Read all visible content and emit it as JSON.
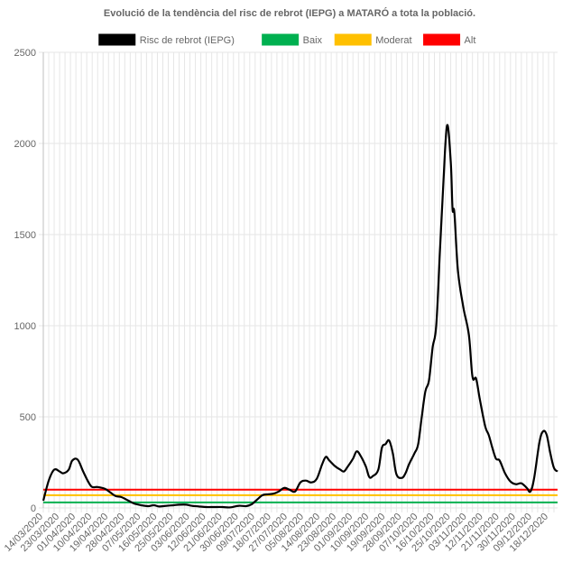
{
  "chart_data": {
    "type": "line",
    "title": "Evolució de la tendència del risc de rebrot (IEPG) a MATARÓ a tota la població.",
    "xlabel": "",
    "ylabel": "",
    "ylim": [
      0,
      2500
    ],
    "yticks": [
      0,
      500,
      1000,
      1500,
      2000,
      2500
    ],
    "grid": true,
    "legend_position": "top",
    "x_tick_labels": [
      "14/03/2020",
      "23/03/2020",
      "01/04/2020",
      "10/04/2020",
      "19/04/2020",
      "28/04/2020",
      "07/05/2020",
      "16/05/2020",
      "25/05/2020",
      "03/06/2020",
      "12/06/2020",
      "21/06/2020",
      "30/06/2020",
      "09/07/2020",
      "18/07/2020",
      "27/07/2020",
      "05/08/2020",
      "14/08/2020",
      "23/08/2020",
      "01/09/2020",
      "10/09/2020",
      "19/09/2020",
      "28/09/2020",
      "07/10/2020",
      "16/10/2020",
      "25/10/2020",
      "03/11/2020",
      "12/11/2020",
      "21/11/2020",
      "30/11/2020",
      "09/12/2020",
      "18/12/2020"
    ],
    "x_range": [
      "14/03/2020",
      "23/12/2020"
    ],
    "series": [
      {
        "name": "Risc de rebrot (IEPG)",
        "color": "#000000",
        "points": [
          [
            "14/03/2020",
            40
          ],
          [
            "17/03/2020",
            150
          ],
          [
            "20/03/2020",
            210
          ],
          [
            "23/03/2020",
            200
          ],
          [
            "25/03/2020",
            190
          ],
          [
            "28/03/2020",
            210
          ],
          [
            "30/03/2020",
            260
          ],
          [
            "02/04/2020",
            265
          ],
          [
            "05/04/2020",
            200
          ],
          [
            "08/04/2020",
            140
          ],
          [
            "10/04/2020",
            115
          ],
          [
            "13/04/2020",
            115
          ],
          [
            "17/04/2020",
            105
          ],
          [
            "20/04/2020",
            85
          ],
          [
            "23/04/2020",
            65
          ],
          [
            "26/04/2020",
            60
          ],
          [
            "30/04/2020",
            40
          ],
          [
            "03/05/2020",
            25
          ],
          [
            "07/05/2020",
            15
          ],
          [
            "11/05/2020",
            10
          ],
          [
            "14/05/2020",
            15
          ],
          [
            "17/05/2020",
            8
          ],
          [
            "21/05/2020",
            12
          ],
          [
            "25/05/2020",
            15
          ],
          [
            "28/05/2020",
            18
          ],
          [
            "01/06/2020",
            18
          ],
          [
            "04/06/2020",
            12
          ],
          [
            "08/06/2020",
            8
          ],
          [
            "12/06/2020",
            5
          ],
          [
            "16/06/2020",
            5
          ],
          [
            "21/06/2020",
            5
          ],
          [
            "25/06/2020",
            3
          ],
          [
            "30/06/2020",
            12
          ],
          [
            "04/07/2020",
            10
          ],
          [
            "07/07/2020",
            20
          ],
          [
            "10/07/2020",
            45
          ],
          [
            "13/07/2020",
            70
          ],
          [
            "16/07/2020",
            75
          ],
          [
            "19/07/2020",
            78
          ],
          [
            "22/07/2020",
            90
          ],
          [
            "25/07/2020",
            110
          ],
          [
            "28/07/2020",
            100
          ],
          [
            "31/07/2020",
            90
          ],
          [
            "03/08/2020",
            140
          ],
          [
            "06/08/2020",
            150
          ],
          [
            "09/08/2020",
            140
          ],
          [
            "12/08/2020",
            160
          ],
          [
            "15/08/2020",
            240
          ],
          [
            "17/08/2020",
            280
          ],
          [
            "19/08/2020",
            260
          ],
          [
            "22/08/2020",
            230
          ],
          [
            "25/08/2020",
            210
          ],
          [
            "27/08/2020",
            200
          ],
          [
            "29/08/2020",
            225
          ],
          [
            "01/09/2020",
            270
          ],
          [
            "03/09/2020",
            310
          ],
          [
            "05/09/2020",
            290
          ],
          [
            "08/09/2020",
            230
          ],
          [
            "10/09/2020",
            170
          ],
          [
            "12/09/2020",
            175
          ],
          [
            "15/09/2020",
            210
          ],
          [
            "17/09/2020",
            330
          ],
          [
            "19/09/2020",
            350
          ],
          [
            "21/09/2020",
            370
          ],
          [
            "23/09/2020",
            300
          ],
          [
            "25/09/2020",
            185
          ],
          [
            "28/09/2020",
            165
          ],
          [
            "30/09/2020",
            190
          ],
          [
            "02/10/2020",
            240
          ],
          [
            "05/10/2020",
            300
          ],
          [
            "07/10/2020",
            350
          ],
          [
            "09/10/2020",
            500
          ],
          [
            "11/10/2020",
            640
          ],
          [
            "13/10/2020",
            700
          ],
          [
            "15/10/2020",
            880
          ],
          [
            "17/10/2020",
            1000
          ],
          [
            "19/10/2020",
            1400
          ],
          [
            "21/10/2020",
            1800
          ],
          [
            "23/10/2020",
            2100
          ],
          [
            "25/10/2020",
            1900
          ],
          [
            "26/10/2020",
            1640
          ],
          [
            "27/10/2020",
            1620
          ],
          [
            "29/10/2020",
            1300
          ],
          [
            "01/11/2020",
            1100
          ],
          [
            "04/11/2020",
            950
          ],
          [
            "06/11/2020",
            720
          ],
          [
            "08/11/2020",
            710
          ],
          [
            "10/11/2020",
            600
          ],
          [
            "13/11/2020",
            450
          ],
          [
            "15/11/2020",
            400
          ],
          [
            "17/11/2020",
            330
          ],
          [
            "19/11/2020",
            270
          ],
          [
            "21/11/2020",
            260
          ],
          [
            "24/11/2020",
            190
          ],
          [
            "27/11/2020",
            145
          ],
          [
            "30/11/2020",
            130
          ],
          [
            "03/12/2020",
            135
          ],
          [
            "06/12/2020",
            110
          ],
          [
            "08/12/2020",
            90
          ],
          [
            "10/12/2020",
            160
          ],
          [
            "13/12/2020",
            360
          ],
          [
            "15/12/2020",
            420
          ],
          [
            "17/12/2020",
            400
          ],
          [
            "19/12/2020",
            300
          ],
          [
            "21/12/2020",
            220
          ],
          [
            "23/12/2020",
            200
          ]
        ]
      },
      {
        "name": "Baix",
        "color": "#00b050",
        "points": [
          [
            "14/03/2020",
            30
          ],
          [
            "23/12/2020",
            30
          ]
        ]
      },
      {
        "name": "Moderat",
        "color": "#ffc000",
        "points": [
          [
            "14/03/2020",
            70
          ],
          [
            "23/12/2020",
            70
          ]
        ]
      },
      {
        "name": "Alt",
        "color": "#ff0000",
        "points": [
          [
            "14/03/2020",
            100
          ],
          [
            "23/12/2020",
            100
          ]
        ]
      }
    ]
  }
}
